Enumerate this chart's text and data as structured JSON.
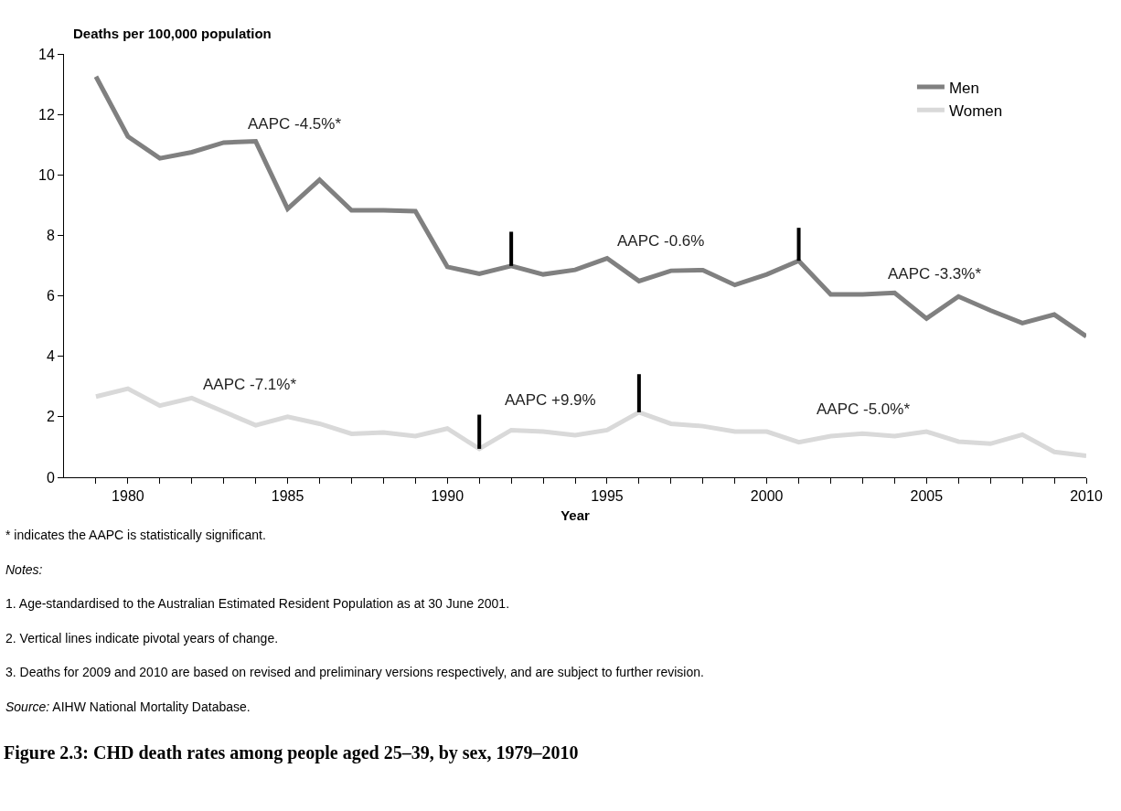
{
  "chart_data": {
    "type": "line",
    "title": "Figure 2.3: CHD death rates among people aged 25–39, by sex, 1979–2010",
    "xlabel": "Year",
    "ylabel": "Deaths per 100,000 population",
    "x": [
      1979,
      1980,
      1981,
      1982,
      1983,
      1984,
      1985,
      1986,
      1987,
      1988,
      1989,
      1990,
      1991,
      1992,
      1993,
      1994,
      1995,
      1996,
      1997,
      1998,
      1999,
      2000,
      2001,
      2002,
      2003,
      2004,
      2005,
      2006,
      2007,
      2008,
      2009,
      2010
    ],
    "series": [
      {
        "name": "Men",
        "color": "#808080",
        "values": [
          13.25,
          11.27,
          10.55,
          10.75,
          11.07,
          11.11,
          8.88,
          9.84,
          8.83,
          8.83,
          8.8,
          6.96,
          6.73,
          6.99,
          6.71,
          6.86,
          7.24,
          6.49,
          6.83,
          6.85,
          6.36,
          6.71,
          7.16,
          6.05,
          6.05,
          6.1,
          5.25,
          5.98,
          5.52,
          5.1,
          5.38,
          4.66
        ]
      },
      {
        "name": "Women",
        "color": "#d9d9d9",
        "values": [
          2.67,
          2.93,
          2.37,
          2.62,
          2.17,
          1.72,
          2.0,
          1.77,
          1.44,
          1.48,
          1.36,
          1.61,
          0.94,
          1.56,
          1.51,
          1.39,
          1.56,
          2.15,
          1.77,
          1.69,
          1.51,
          1.51,
          1.16,
          1.36,
          1.44,
          1.36,
          1.51,
          1.18,
          1.11,
          1.41,
          0.84,
          0.71
        ]
      },
      {
        "type": "line",
        "color": "#000000",
        "x": [
          1992,
          1992
        ],
        "values": [
          6.99,
          8.12
        ]
      },
      {
        "type": "line",
        "color": "#000000",
        "x": [
          2001,
          2001
        ],
        "values": [
          7.16,
          8.25
        ]
      },
      {
        "type": "line",
        "color": "#000000",
        "x": [
          1991,
          1991
        ],
        "values": [
          0.94,
          2.07
        ]
      },
      {
        "type": "line",
        "color": "#000000",
        "x": [
          1996,
          1996
        ],
        "values": [
          2.15,
          3.41
        ]
      }
    ],
    "xlim": [
      1978,
      2010
    ],
    "xticks": [
      {
        "value": 1979,
        "label": null
      },
      1980,
      {
        "value": 1981,
        "label": null
      },
      {
        "value": 1982,
        "label": null
      },
      {
        "value": 1983,
        "label": null
      },
      {
        "value": 1984,
        "label": null
      },
      1985,
      {
        "value": 1986,
        "label": null
      },
      {
        "value": 1987,
        "label": null
      },
      {
        "value": 1988,
        "label": null
      },
      {
        "value": 1989,
        "label": null
      },
      1990,
      {
        "value": 1991,
        "label": null
      },
      {
        "value": 1992,
        "label": null
      },
      {
        "value": 1993,
        "label": null
      },
      {
        "value": 1994,
        "label": null
      },
      1995,
      {
        "value": 1996,
        "label": null
      },
      {
        "value": 1997,
        "label": null
      },
      {
        "value": 1998,
        "label": null
      },
      {
        "value": 1999,
        "label": null
      },
      2000,
      {
        "value": 2001,
        "label": null
      },
      {
        "value": 2002,
        "label": null
      },
      {
        "value": 2003,
        "label": null
      },
      {
        "value": 2004,
        "label": null
      },
      2005,
      {
        "value": 2006,
        "label": null
      },
      {
        "value": 2007,
        "label": null
      },
      {
        "value": 2008,
        "label": null
      },
      {
        "value": 2009,
        "label": null
      },
      2010
    ],
    "ylim": [
      0,
      14
    ],
    "yticks": [
      0,
      2,
      4,
      6,
      8,
      10,
      12,
      14
    ],
    "legend": "top right",
    "marker": "none",
    "line_style": "solid",
    "annotations": [
      "AAPC -4.5%*",
      "AAPC -7.1%*",
      "AAPC -0.6%",
      "AAPC +9.9%",
      "AAPC -3.3%*",
      "AAPC -5.0%*",
      "* indicates the AAPC is statistically significant.",
      "Notes:",
      "1. Age-standardised to the Australian Estimated Resident Population as at 30 June 2001.",
      "2. Vertical lines indicate pivotal years of change.",
      "3. Deaths for 2009 and 2010 are based on revised and preliminary versions respectively, and are subject to further revision.",
      "Source: AIHW National Mortality Database."
    ]
  }
}
